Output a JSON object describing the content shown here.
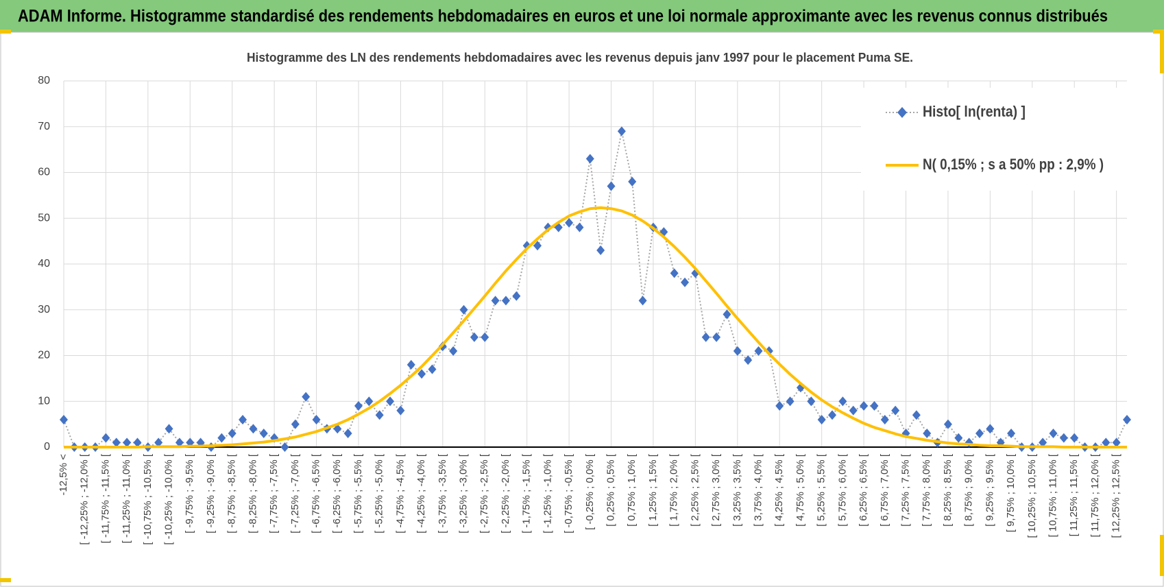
{
  "header": {
    "title": "ADAM Informe. Histogramme standardisé des rendements hebdomadaires en euros et une loi normale approximante avec les revenus connus distribués"
  },
  "chart_data": {
    "type": "line",
    "title": "Histogramme des LN des rendements hebdomadaires avec les revenus depuis janv 1997 pour le placement Puma SE.",
    "categories": [
      "-12,5% <",
      null,
      "[ -12,25% ; -12,0% [",
      null,
      "[ -11,75% ; -11,5% [",
      null,
      "[ -11,25% ; -11,0% [",
      null,
      "[ -10,75% ; -10,5% [",
      null,
      "[ -10,25% ; -10,0% [",
      null,
      "[ -9,75% ; -9,5% [",
      null,
      "[ -9,25% ; -9,0% [",
      null,
      "[ -8,75% ; -8,5% [",
      null,
      "[ -8,25% ; -8,0% [",
      null,
      "[ -7,75% ; -7,5% [",
      null,
      "[ -7,25% ; -7,0% [",
      null,
      "[ -6,75% ; -6,5% [",
      null,
      "[ -6,25% ; -6,0% [",
      null,
      "[ -5,75% ; -5,5% [",
      null,
      "[ -5,25% ; -5,0% [",
      null,
      "[ -4,75% ; -4,5% [",
      null,
      "[ -4,25% ; -4,0% [",
      null,
      "[ -3,75% ; -3,5% [",
      null,
      "[ -3,25% ; -3,0% [",
      null,
      "[ -2,75% ; -2,5% [",
      null,
      "[ -2,25% ; -2,0% [",
      null,
      "[ -1,75% ; -1,5% [",
      null,
      "[ -1,25% ; -1,0% [",
      null,
      "[ -0,75% ; -0,5% [",
      null,
      "[ -0,25% ; 0,0% [",
      null,
      "[ 0,25% ; 0,5% [",
      null,
      "[ 0,75% ; 1,0% [",
      null,
      "[ 1,25% ; 1,5% [",
      null,
      "[ 1,75% ; 2,0% [",
      null,
      "[ 2,25% ; 2,5% [",
      null,
      "[ 2,75% ; 3,0% [",
      null,
      "[ 3,25% ; 3,5% [",
      null,
      "[ 3,75% ; 4,0% [",
      null,
      "[ 4,25% ; 4,5% [",
      null,
      "[ 4,75% ; 5,0% [",
      null,
      "[ 5,25% ; 5,5% [",
      null,
      "[ 5,75% ; 6,0% [",
      null,
      "[ 6,25% ; 6,5% [",
      null,
      "[ 6,75% ; 7,0% [",
      null,
      "[ 7,25% ; 7,5% [",
      null,
      "[ 7,75% ; 8,0% [",
      null,
      "[ 8,25% ; 8,5% [",
      null,
      "[ 8,75% ; 9,0% [",
      null,
      "[ 9,25% ; 9,5% [",
      null,
      "[ 9,75% ; 10,0% [",
      null,
      "[ 10,25% ; 10,5% [",
      null,
      "[ 10,75% ; 11,0% [",
      null,
      "[ 11,25% ; 11,5% [",
      null,
      "[ 11,75% ; 12,0% [",
      null,
      "[ 12,25% ; 12,5% [",
      null
    ],
    "series": [
      {
        "name": "Histo[ ln(renta) ]",
        "color": "#4472c4",
        "line_color": "#a5a5a5",
        "values": [
          6,
          0,
          0,
          0,
          2,
          1,
          1,
          1,
          0,
          1,
          4,
          1,
          1,
          1,
          0,
          2,
          3,
          6,
          4,
          3,
          2,
          0,
          5,
          11,
          6,
          4,
          4,
          3,
          9,
          10,
          7,
          10,
          8,
          18,
          16,
          17,
          22,
          21,
          30,
          24,
          24,
          32,
          32,
          33,
          44,
          44,
          48,
          48,
          49,
          48,
          63,
          43,
          57,
          69,
          58,
          32,
          48,
          47,
          38,
          36,
          38,
          24,
          24,
          29,
          21,
          19,
          21,
          21,
          9,
          10,
          13,
          10,
          6,
          7,
          10,
          8,
          9,
          9,
          6,
          8,
          3,
          7,
          3,
          1,
          5,
          2,
          1,
          3,
          4,
          1,
          3,
          0,
          0,
          1,
          3,
          2,
          2,
          0,
          0,
          1,
          1,
          6
        ]
      },
      {
        "name": "N( 0,15% ; s a 50% pp : 2,9% )",
        "color": "#ffc000",
        "values": [
          0,
          0,
          0,
          0,
          0,
          0,
          0,
          0,
          0.1,
          0.1,
          0.1,
          0.1,
          0.2,
          0.2,
          0.3,
          0.4,
          0.5,
          0.7,
          0.9,
          1.1,
          1.4,
          1.8,
          2.2,
          2.8,
          3.4,
          4.2,
          5.0,
          6.0,
          7.2,
          8.5,
          10.0,
          11.7,
          13.5,
          15.5,
          17.6,
          20.0,
          22.4,
          25.0,
          27.6,
          30.3,
          33.0,
          35.8,
          38.5,
          41.0,
          43.4,
          45.5,
          47.5,
          49.1,
          50.5,
          51.4,
          52.1,
          52.3,
          52.1,
          51.6,
          50.7,
          49.4,
          47.8,
          45.9,
          43.8,
          41.5,
          39.0,
          36.3,
          33.6,
          30.8,
          28.1,
          25.5,
          22.9,
          20.4,
          18.1,
          15.9,
          13.9,
          12.0,
          10.3,
          8.8,
          7.5,
          6.3,
          5.2,
          4.3,
          3.6,
          2.9,
          2.3,
          1.9,
          1.5,
          1.2,
          0.9,
          0.7,
          0.6,
          0.4,
          0.3,
          0.3,
          0.2,
          0.1,
          0.1,
          0.1,
          0.1,
          0,
          0,
          0,
          0,
          0,
          0,
          0
        ]
      }
    ],
    "ylim": [
      0,
      80
    ],
    "yticks": [
      0,
      10,
      20,
      30,
      40,
      50,
      60,
      70,
      80
    ],
    "grid": true,
    "legend": "upper right"
  }
}
